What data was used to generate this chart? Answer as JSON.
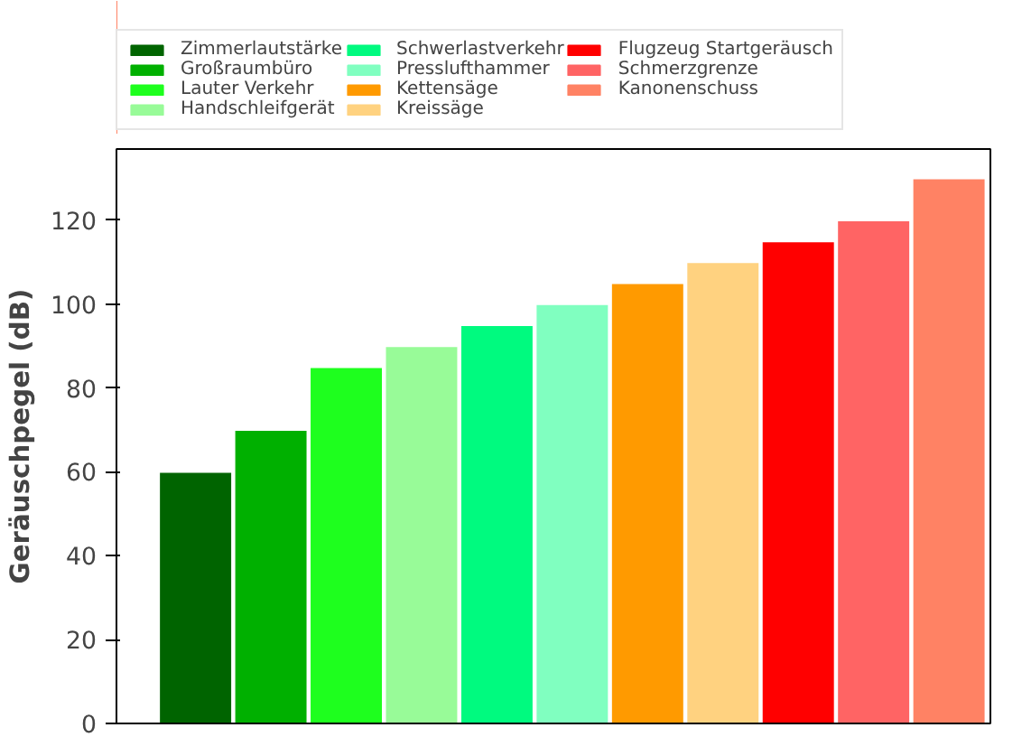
{
  "chart_data": {
    "type": "bar",
    "ylabel": "Geräuschpegel (dB)",
    "categories": [
      null,
      null,
      null,
      null,
      null,
      null,
      null,
      null,
      null,
      null,
      null
    ],
    "series": [
      {
        "name": "Zimmerlautstärke",
        "color": "#006400",
        "values": [
          60,
          null,
          null,
          null,
          null,
          null,
          null,
          null,
          null,
          null,
          null
        ]
      },
      {
        "name": "Großraumbüro",
        "color": "#00b000",
        "values": [
          null,
          70,
          null,
          null,
          null,
          null,
          null,
          null,
          null,
          null,
          null
        ]
      },
      {
        "name": "Lauter Verkehr",
        "color": "#1eff1e",
        "values": [
          null,
          null,
          85,
          null,
          null,
          null,
          null,
          null,
          null,
          null,
          null
        ]
      },
      {
        "name": "Handschleifgerät",
        "color": "#98fb98",
        "values": [
          null,
          null,
          null,
          90,
          null,
          null,
          null,
          null,
          null,
          null,
          null
        ]
      },
      {
        "name": "Schwerlastverkehr",
        "color": "#00fa7f",
        "values": [
          null,
          null,
          null,
          null,
          95,
          null,
          null,
          null,
          null,
          null,
          null
        ]
      },
      {
        "name": "Presslufthammer",
        "color": "#80ffc0",
        "values": [
          null,
          null,
          null,
          null,
          null,
          100,
          null,
          null,
          null,
          null,
          null
        ]
      },
      {
        "name": "Kettensäge",
        "color": "#ff9a00",
        "values": [
          null,
          null,
          null,
          null,
          null,
          null,
          105,
          null,
          null,
          null,
          null
        ]
      },
      {
        "name": "Kreissäge",
        "color": "#ffd280",
        "values": [
          null,
          null,
          null,
          null,
          null,
          null,
          null,
          110,
          null,
          null,
          null
        ]
      },
      {
        "name": "Flugzeug Startgeräusch",
        "color": "#ff0000",
        "values": [
          null,
          null,
          null,
          null,
          null,
          null,
          null,
          null,
          115,
          null,
          null
        ]
      },
      {
        "name": "Schmerzgrenze",
        "color": "#ff6464",
        "values": [
          null,
          null,
          null,
          null,
          null,
          null,
          null,
          null,
          null,
          120,
          null
        ]
      },
      {
        "name": "Kanonenschuss",
        "color": "#ff8264",
        "values": [
          null,
          null,
          null,
          null,
          null,
          null,
          null,
          null,
          null,
          null,
          130
        ]
      }
    ],
    "ylim": [
      0,
      137
    ],
    "yticks": [
      0,
      20,
      40,
      60,
      80,
      100,
      120
    ],
    "grid": false,
    "legend": "top",
    "tick_labels": "y"
  }
}
